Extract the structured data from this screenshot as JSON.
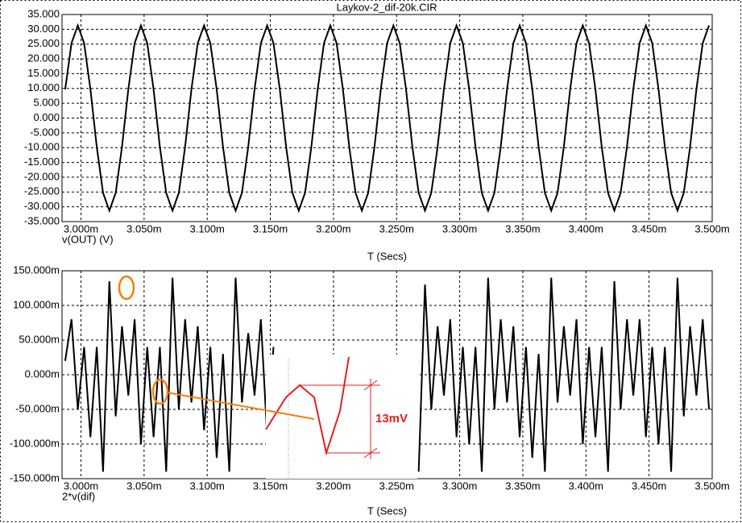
{
  "chart_data": [
    {
      "type": "line",
      "title": "Laykov-2_dif-20k.CIR",
      "xlabel": "T (Secs)",
      "x": [
        2.9875,
        2.9925,
        2.9975,
        3.0025,
        3.0075,
        3.0125,
        3.0175,
        3.0225,
        3.0275,
        3.0325,
        3.0375,
        3.0425,
        3.0475,
        3.0525,
        3.0575,
        3.0625,
        3.0675,
        3.0725,
        3.0775,
        3.0825,
        3.0875,
        3.0925,
        3.0975,
        3.1025,
        3.1075,
        3.1125,
        3.1175,
        3.1225,
        3.1275,
        3.1325,
        3.1375,
        3.1425,
        3.1475,
        3.1525,
        3.1575,
        3.1625,
        3.1675,
        3.1725,
        3.1775,
        3.1825,
        3.1875,
        3.1925,
        3.1975,
        3.2025,
        3.2075,
        3.2125,
        3.2175,
        3.2225,
        3.2275,
        3.2325,
        3.2375,
        3.2425,
        3.2475,
        3.2525,
        3.2575,
        3.2625,
        3.2675,
        3.2725,
        3.2775,
        3.2825,
        3.2875,
        3.2925,
        3.2975,
        3.3025,
        3.3075,
        3.3125,
        3.3175,
        3.3225,
        3.3275,
        3.3325,
        3.3375,
        3.3425,
        3.3475,
        3.3525,
        3.3575,
        3.3625,
        3.3675,
        3.3725,
        3.3775,
        3.3825,
        3.3875,
        3.3925,
        3.3975,
        3.4025,
        3.4075,
        3.4125,
        3.4175,
        3.4225,
        3.4275,
        3.4325,
        3.4375,
        3.4425,
        3.4475,
        3.4525,
        3.4575,
        3.4625,
        3.4675,
        3.4725,
        3.4775,
        3.4825,
        3.4875,
        3.4925,
        3.4975
      ],
      "series": [
        {
          "name": "v(OUT) (V)",
          "color": "#000000",
          "values": [
            9.7,
            25.3,
            31.3,
            25.3,
            9.7,
            -9.7,
            -25.3,
            -31.3,
            -25.3,
            -9.7,
            9.7,
            25.3,
            31.3,
            25.3,
            9.7,
            -9.7,
            -25.3,
            -31.3,
            -25.3,
            -9.7,
            9.7,
            25.3,
            31.3,
            25.3,
            9.7,
            -9.7,
            -25.3,
            -31.3,
            -25.3,
            -9.7,
            9.7,
            25.3,
            31.3,
            25.3,
            9.7,
            -9.7,
            -25.3,
            -31.3,
            -25.3,
            -9.7,
            9.7,
            25.3,
            31.3,
            25.3,
            9.7,
            -9.7,
            -25.3,
            -31.3,
            -25.3,
            -9.7,
            9.7,
            25.3,
            31.3,
            25.3,
            9.7,
            -9.7,
            -25.3,
            -31.3,
            -25.3,
            -9.7,
            9.7,
            25.3,
            31.3,
            25.3,
            9.7,
            -9.7,
            -25.3,
            -31.3,
            -25.3,
            -9.7,
            9.7,
            25.3,
            31.3,
            25.3,
            9.7,
            -9.7,
            -25.3,
            -31.3,
            -25.3,
            -9.7,
            9.7,
            25.3,
            31.3,
            25.3,
            9.7,
            -9.7,
            -25.3,
            -31.3,
            -25.3,
            -9.7,
            9.7,
            25.3,
            31.3,
            25.3,
            9.7,
            -9.7,
            -25.3,
            -31.3,
            -25.3,
            -9.7,
            9.7,
            25.3,
            31.3
          ]
        }
      ],
      "xlim": [
        2.985,
        3.5
      ],
      "xticks": [
        {
          "value": 3.0,
          "label": "3.000m"
        },
        {
          "value": 3.05,
          "label": "3.050m"
        },
        {
          "value": 3.1,
          "label": "3.100m"
        },
        {
          "value": 3.15,
          "label": "3.150m"
        },
        {
          "value": 3.2,
          "label": "3.200m"
        },
        {
          "value": 3.25,
          "label": "3.250m"
        },
        {
          "value": 3.3,
          "label": "3.300m"
        },
        {
          "value": 3.35,
          "label": "3.350m"
        },
        {
          "value": 3.4,
          "label": "3.400m"
        },
        {
          "value": 3.45,
          "label": "3.450m"
        },
        {
          "value": 3.5,
          "label": "3.500m"
        }
      ],
      "ylim": [
        -35,
        35
      ],
      "yticks": [
        {
          "value": -35,
          "label": "-35.000"
        },
        {
          "value": -30,
          "label": "-30.000"
        },
        {
          "value": -25,
          "label": "-25.000"
        },
        {
          "value": -20,
          "label": "-20.000"
        },
        {
          "value": -15,
          "label": "-15.000"
        },
        {
          "value": -10,
          "label": "-10.000"
        },
        {
          "value": -5,
          "label": "-5.000"
        },
        {
          "value": 0,
          "label": "0.000"
        },
        {
          "value": 5,
          "label": "5.000"
        },
        {
          "value": 10,
          "label": "10.000"
        },
        {
          "value": 15,
          "label": "15.000"
        },
        {
          "value": 20,
          "label": "20.000"
        },
        {
          "value": 25,
          "label": "25.000"
        },
        {
          "value": 30,
          "label": "30.000"
        },
        {
          "value": 35,
          "label": "35.000"
        }
      ],
      "grid": true
    },
    {
      "type": "line",
      "xlabel": "T (Secs)",
      "annotation": "13mV",
      "x": [
        2.9875,
        2.9925,
        2.9975,
        3.0025,
        3.0075,
        3.0125,
        3.0175,
        3.0225,
        3.0275,
        3.0325,
        3.0375,
        3.0425,
        3.0475,
        3.0525,
        3.0575,
        3.0625,
        3.0675,
        3.0725,
        3.0775,
        3.0825,
        3.0875,
        3.0925,
        3.0975,
        3.1025,
        3.1075,
        3.1125,
        3.1175,
        3.1225,
        3.1275,
        3.1325,
        3.1375,
        3.1425,
        3.1475,
        3.1525,
        3.1575,
        3.1625,
        3.1675,
        3.1725,
        3.1775,
        3.1825,
        3.1875,
        3.1925,
        3.1975,
        3.2025,
        3.2075,
        3.2125,
        3.2175,
        3.2225,
        3.2275,
        3.2325,
        3.2375,
        3.2425,
        3.2475,
        3.2525,
        3.2575,
        3.2625,
        3.2675,
        3.2725,
        3.2775,
        3.2825,
        3.2875,
        3.2925,
        3.2975,
        3.3025,
        3.3075,
        3.3125,
        3.3175,
        3.3225,
        3.3275,
        3.3325,
        3.3375,
        3.3425,
        3.3475,
        3.3525,
        3.3575,
        3.3625,
        3.3675,
        3.3725,
        3.3775,
        3.3825,
        3.3875,
        3.3925,
        3.3975,
        3.4025,
        3.4075,
        3.4125,
        3.4175,
        3.4225,
        3.4275,
        3.4325,
        3.4375,
        3.4425,
        3.4475,
        3.4525,
        3.4575,
        3.4625,
        3.4675,
        3.4725,
        3.4775,
        3.4825,
        3.4875,
        3.4925,
        3.4975
      ],
      "series": [
        {
          "name": "2*v(dif)",
          "color": "#000000",
          "values": [
            0.02,
            0.08,
            -0.05,
            0.04,
            -0.09,
            0.04,
            -0.14,
            0.135,
            -0.06,
            0.07,
            -0.03,
            0.08,
            -0.1,
            0.04,
            -0.09,
            0.04,
            -0.14,
            0.14,
            -0.05,
            0.08,
            -0.04,
            0.07,
            -0.08,
            0.04,
            -0.12,
            0.03,
            -0.14,
            0.14,
            -0.04,
            0.06,
            -0.03,
            0.08,
            -0.09,
            0.04,
            null,
            null,
            null,
            null,
            null,
            null,
            null,
            null,
            null,
            null,
            null,
            null,
            null,
            null,
            null,
            null,
            null,
            null,
            null,
            null,
            null,
            null,
            -0.14,
            0.13,
            -0.05,
            0.07,
            -0.03,
            0.08,
            -0.09,
            0.04,
            -0.1,
            0.04,
            -0.14,
            0.14,
            -0.05,
            0.08,
            -0.04,
            0.07,
            -0.09,
            0.04,
            -0.12,
            0.03,
            -0.14,
            0.14,
            -0.04,
            0.07,
            -0.03,
            0.08,
            -0.1,
            0.04,
            -0.09,
            0.04,
            -0.14,
            0.135,
            -0.05,
            0.08,
            -0.03,
            0.08,
            -0.09,
            0.04,
            -0.1,
            0.04,
            -0.14,
            0.14,
            -0.06,
            0.07,
            -0.03,
            0.08,
            -0.05
          ]
        }
      ],
      "xlim": [
        2.985,
        3.5
      ],
      "xticks": [
        {
          "value": 3.0,
          "label": "3.000m"
        },
        {
          "value": 3.05,
          "label": "3.050m"
        },
        {
          "value": 3.1,
          "label": "3.100m"
        },
        {
          "value": 3.15,
          "label": "3.150m"
        },
        {
          "value": 3.2,
          "label": "3.200m"
        },
        {
          "value": 3.25,
          "label": "3.250m"
        },
        {
          "value": 3.3,
          "label": "3.300m"
        },
        {
          "value": 3.35,
          "label": "3.350m"
        },
        {
          "value": 3.4,
          "label": "3.400m"
        },
        {
          "value": 3.45,
          "label": "3.450m"
        },
        {
          "value": 3.5,
          "label": "3.500m"
        }
      ],
      "ylim": [
        -0.15,
        0.15
      ],
      "yticks": [
        {
          "value": -0.15,
          "label": "-150.000m"
        },
        {
          "value": -0.1,
          "label": "-100.000m"
        },
        {
          "value": -0.05,
          "label": "-50.000m"
        },
        {
          "value": 0,
          "label": "0.000m"
        },
        {
          "value": 0.05,
          "label": "50.000m"
        },
        {
          "value": 0.1,
          "label": "100.000m"
        },
        {
          "value": 0.15,
          "label": "150.000m"
        }
      ],
      "grid": true
    }
  ]
}
